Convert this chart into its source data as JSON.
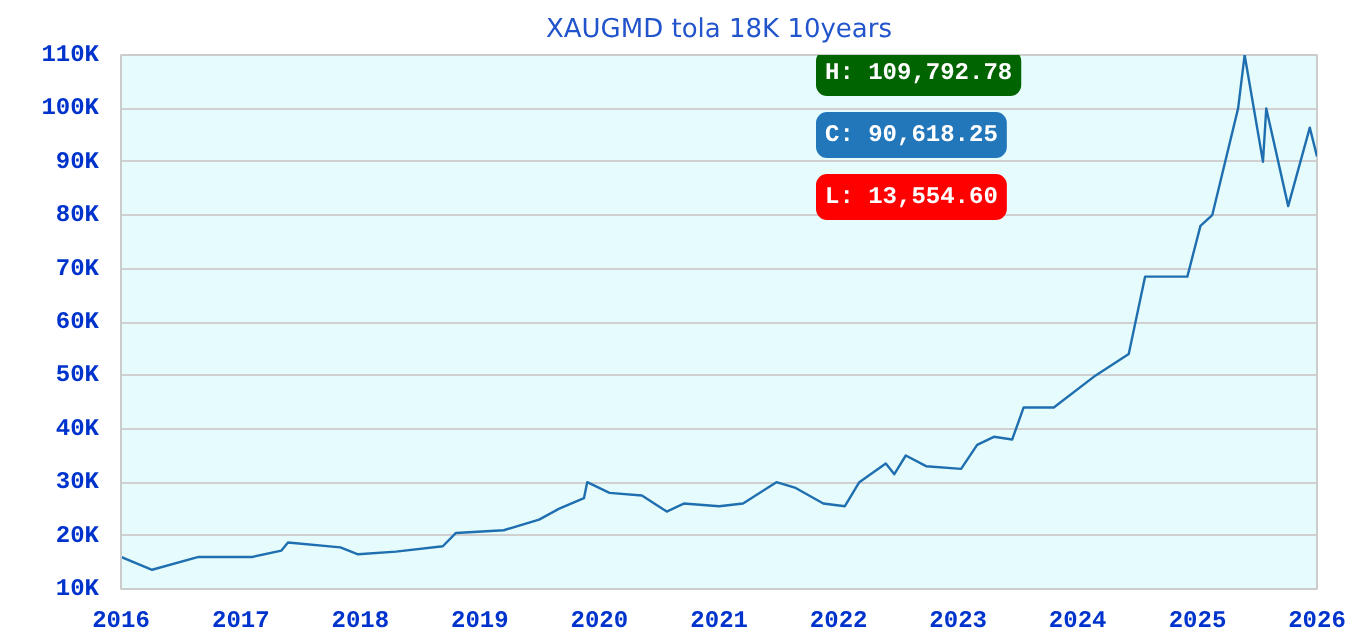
{
  "chart_data": {
    "type": "line",
    "title": "XAUGMD tola 18K 10years",
    "x": [
      "2016-01-01",
      "2016-04-05",
      "2016-08-25",
      "2017-02-05",
      "2017-05-05",
      "2017-05-25",
      "2017-11-01",
      "2017-12-25",
      "2018-04-20",
      "2018-09-10",
      "2018-10-20",
      "2019-03-15",
      "2019-07-01",
      "2019-08-30",
      "2019-11-15",
      "2019-11-25",
      "2020-02-01",
      "2020-05-10",
      "2020-07-25",
      "2020-09-15",
      "2021-01-01",
      "2021-03-15",
      "2021-06-25",
      "2021-08-20",
      "2021-11-15",
      "2022-01-20",
      "2022-03-05",
      "2022-05-25",
      "2022-06-20",
      "2022-07-25",
      "2022-09-25",
      "2023-01-10",
      "2023-02-28",
      "2023-04-20",
      "2023-06-15",
      "2023-07-20",
      "2023-10-20",
      "2024-02-25",
      "2024-06-05",
      "2024-07-25",
      "2024-12-01",
      "2025-01-10",
      "2025-02-15",
      "2025-05-05",
      "2025-05-25",
      "2025-07-20",
      "2025-07-30",
      "2025-10-05",
      "2025-12-10",
      "2026-01-01"
    ],
    "series": [
      {
        "color": "#1f6fb0",
        "values": [
          16,
          13.6,
          16,
          16,
          17.2,
          18.7,
          17.8,
          16.5,
          17,
          18,
          20.5,
          21,
          23,
          25,
          27,
          30,
          28,
          27.5,
          24.5,
          26,
          25.5,
          26,
          30,
          29,
          26,
          25.5,
          30,
          33.5,
          31.5,
          35,
          33,
          32.5,
          37,
          38.5,
          38,
          44,
          44,
          50,
          54,
          68.5,
          68.5,
          78,
          80,
          100,
          110,
          90,
          100,
          81.7,
          96.4,
          91
        ]
      }
    ],
    "xlim": [
      "2016-01-01",
      "2026-01-01"
    ],
    "xticks": [
      {
        "value": "2016-01-01",
        "label": "2016"
      },
      {
        "value": "2017-01-01",
        "label": "2017"
      },
      {
        "value": "2018-01-01",
        "label": "2018"
      },
      {
        "value": "2019-01-01",
        "label": "2019"
      },
      {
        "value": "2020-01-01",
        "label": "2020"
      },
      {
        "value": "2021-01-01",
        "label": "2021"
      },
      {
        "value": "2022-01-01",
        "label": "2022"
      },
      {
        "value": "2023-01-01",
        "label": "2023"
      },
      {
        "value": "2024-01-01",
        "label": "2024"
      },
      {
        "value": "2025-01-01",
        "label": "2025"
      },
      {
        "value": "2026-01-01",
        "label": "2026"
      }
    ],
    "ylim": [
      10,
      110
    ],
    "yticks": [
      {
        "value": 10,
        "label": "10K"
      },
      {
        "value": 20,
        "label": "20K"
      },
      {
        "value": 30,
        "label": "30K"
      },
      {
        "value": 40,
        "label": "40K"
      },
      {
        "value": 50,
        "label": "50K"
      },
      {
        "value": 60,
        "label": "60K"
      },
      {
        "value": 70,
        "label": "70K"
      },
      {
        "value": 80,
        "label": "80K"
      },
      {
        "value": 90,
        "label": "90K"
      },
      {
        "value": 100,
        "label": "100K"
      },
      {
        "value": 110,
        "label": "110K"
      }
    ],
    "grid": "y",
    "annotations": [
      "H: 109,792.78",
      "C: 90,618.25",
      "L: 13,554.60"
    ]
  }
}
